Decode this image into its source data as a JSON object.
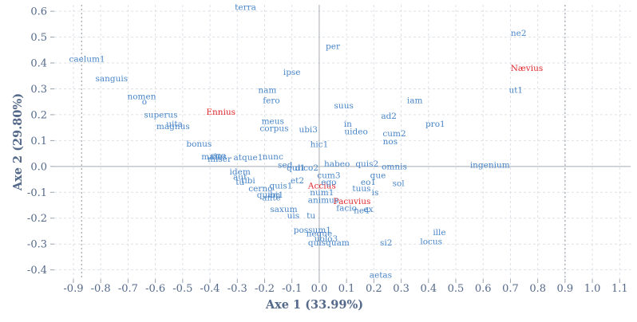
{
  "chart_data": {
    "type": "scatter",
    "xlabel": "Axe 1 (33.99%)",
    "ylabel": "Axe 2 (29.80%)",
    "xlim": [
      -0.97,
      1.14
    ],
    "ylim": [
      -0.435,
      0.625
    ],
    "x_ticks": [
      -0.9,
      -0.8,
      -0.7,
      -0.6,
      -0.5,
      -0.4,
      -0.3,
      -0.2,
      -0.1,
      0.0,
      0.1,
      0.2,
      0.3,
      0.4,
      0.5,
      0.6,
      0.7,
      0.8,
      0.9,
      1.0,
      1.1
    ],
    "y_ticks": [
      -0.4,
      -0.3,
      -0.2,
      -0.1,
      0.0,
      0.1,
      0.2,
      0.3,
      0.4,
      0.5,
      0.6
    ],
    "x_tick_labels": [
      "-0.9",
      "-0.8",
      "-0.7",
      "-0.6",
      "-0.5",
      "-0.4",
      "-0.3",
      "-0.2",
      "-0.1",
      "0.0",
      "0.1",
      "0.2",
      "0.3",
      "0.4",
      "0.5",
      "0.6",
      "0.7",
      "0.8",
      "0.9",
      "1.0",
      "1.1"
    ],
    "y_tick_labels": [
      "-0.4",
      "-0.3",
      "-0.2",
      "-0.1",
      "0.0",
      "0.1",
      "0.2",
      "0.3",
      "0.4",
      "0.5",
      "0.6"
    ],
    "grid": true,
    "reference_lines": {
      "x": [
        0,
        -0.87,
        0.9
      ],
      "y": [
        0
      ]
    },
    "colors": {
      "words": "#4a86c8",
      "authors": "#e0282e",
      "axis": "#55698a",
      "grid": "#dde1e6"
    },
    "series": [
      {
        "name": "authors",
        "points": [
          {
            "label": "Nævius",
            "x": 0.76,
            "y": 0.38
          },
          {
            "label": "Ennius",
            "x": -0.36,
            "y": 0.21
          },
          {
            "label": "Accius",
            "x": 0.01,
            "y": -0.075
          },
          {
            "label": "Pacuvius",
            "x": 0.12,
            "y": -0.135
          }
        ]
      },
      {
        "name": "words",
        "points": [
          {
            "label": "terra",
            "x": -0.27,
            "y": 0.615
          },
          {
            "label": "ne2",
            "x": 0.73,
            "y": 0.515
          },
          {
            "label": "per",
            "x": 0.05,
            "y": 0.465
          },
          {
            "label": "caelum1",
            "x": -0.85,
            "y": 0.415
          },
          {
            "label": "ipse",
            "x": -0.1,
            "y": 0.365
          },
          {
            "label": "sanguis",
            "x": -0.76,
            "y": 0.34
          },
          {
            "label": "nam",
            "x": -0.19,
            "y": 0.295
          },
          {
            "label": "ut1",
            "x": 0.72,
            "y": 0.295
          },
          {
            "label": "nomen",
            "x": -0.65,
            "y": 0.27
          },
          {
            "label": "o",
            "x": -0.64,
            "y": 0.25
          },
          {
            "label": "fero",
            "x": -0.175,
            "y": 0.255
          },
          {
            "label": "iam",
            "x": 0.35,
            "y": 0.255
          },
          {
            "label": "suus",
            "x": 0.09,
            "y": 0.235
          },
          {
            "label": "superus",
            "x": -0.58,
            "y": 0.2
          },
          {
            "label": "ad2",
            "x": 0.255,
            "y": 0.195
          },
          {
            "label": "uita",
            "x": -0.53,
            "y": 0.165
          },
          {
            "label": "magnus",
            "x": -0.535,
            "y": 0.155
          },
          {
            "label": "meus",
            "x": -0.17,
            "y": 0.175
          },
          {
            "label": "in",
            "x": 0.105,
            "y": 0.165
          },
          {
            "label": "pro1",
            "x": 0.425,
            "y": 0.165
          },
          {
            "label": "corpus",
            "x": -0.165,
            "y": 0.148
          },
          {
            "label": "ubi3",
            "x": -0.04,
            "y": 0.142
          },
          {
            "label": "uideo",
            "x": 0.135,
            "y": 0.135
          },
          {
            "label": "cum2",
            "x": 0.275,
            "y": 0.128
          },
          {
            "label": "nos",
            "x": 0.26,
            "y": 0.097
          },
          {
            "label": "bonus",
            "x": -0.44,
            "y": 0.088
          },
          {
            "label": "hic1",
            "x": -0.0,
            "y": 0.085
          },
          {
            "label": "malus",
            "x": -0.385,
            "y": 0.038
          },
          {
            "label": "ego",
            "x": -0.37,
            "y": 0.043
          },
          {
            "label": "miser",
            "x": -0.365,
            "y": 0.028
          },
          {
            "label": "atque1",
            "x": -0.26,
            "y": 0.035
          },
          {
            "label": "nunc",
            "x": -0.17,
            "y": 0.038
          },
          {
            "label": "habeo",
            "x": 0.065,
            "y": 0.01
          },
          {
            "label": "quis2",
            "x": 0.175,
            "y": 0.01
          },
          {
            "label": "omnis",
            "x": 0.275,
            "y": 0.0
          },
          {
            "label": "ingenium",
            "x": 0.625,
            "y": 0.005
          },
          {
            "label": "sed",
            "x": -0.125,
            "y": 0.005
          },
          {
            "label": "qui1",
            "x": -0.085,
            "y": -0.005
          },
          {
            "label": "dico2",
            "x": -0.045,
            "y": -0.005
          },
          {
            "label": "idem",
            "x": -0.29,
            "y": -0.02
          },
          {
            "label": "cum3",
            "x": 0.035,
            "y": -0.035
          },
          {
            "label": "que",
            "x": 0.215,
            "y": -0.035
          },
          {
            "label": "aut",
            "x": -0.29,
            "y": -0.04
          },
          {
            "label": "et2",
            "x": -0.08,
            "y": -0.055
          },
          {
            "label": "tibi",
            "x": -0.26,
            "y": -0.055
          },
          {
            "label": "tu",
            "x": -0.29,
            "y": -0.06
          },
          {
            "label": "eo1",
            "x": 0.18,
            "y": -0.06
          },
          {
            "label": "ego",
            "x": 0.035,
            "y": -0.06
          },
          {
            "label": "sol",
            "x": 0.29,
            "y": -0.065
          },
          {
            "label": "quis1",
            "x": -0.14,
            "y": -0.075
          },
          {
            "label": "cerno",
            "x": -0.215,
            "y": -0.085
          },
          {
            "label": "tuus",
            "x": 0.155,
            "y": -0.085
          },
          {
            "label": "num1",
            "x": 0.01,
            "y": -0.1
          },
          {
            "label": "is",
            "x": 0.205,
            "y": -0.1
          },
          {
            "label": "quam",
            "x": -0.185,
            "y": -0.11
          },
          {
            "label": "ibi1",
            "x": -0.16,
            "y": -0.11
          },
          {
            "label": "ante",
            "x": -0.175,
            "y": -0.12
          },
          {
            "label": "animus",
            "x": 0.015,
            "y": -0.13
          },
          {
            "label": "facio",
            "x": 0.1,
            "y": -0.16
          },
          {
            "label": "ne4",
            "x": 0.155,
            "y": -0.17
          },
          {
            "label": "ex",
            "x": 0.18,
            "y": -0.165
          },
          {
            "label": "saxum",
            "x": -0.13,
            "y": -0.165
          },
          {
            "label": "uis",
            "x": -0.095,
            "y": -0.19
          },
          {
            "label": "tu",
            "x": -0.03,
            "y": -0.19
          },
          {
            "label": "possum1",
            "x": -0.025,
            "y": -0.245
          },
          {
            "label": "neque",
            "x": -0.0,
            "y": -0.26
          },
          {
            "label": "ille",
            "x": 0.44,
            "y": -0.255
          },
          {
            "label": "uolo3",
            "x": 0.025,
            "y": -0.28
          },
          {
            "label": "locus",
            "x": 0.41,
            "y": -0.29
          },
          {
            "label": "si2",
            "x": 0.245,
            "y": -0.295
          },
          {
            "label": "quisquam",
            "x": 0.035,
            "y": -0.295
          },
          {
            "label": "aetas",
            "x": 0.225,
            "y": -0.42
          }
        ]
      }
    ]
  }
}
